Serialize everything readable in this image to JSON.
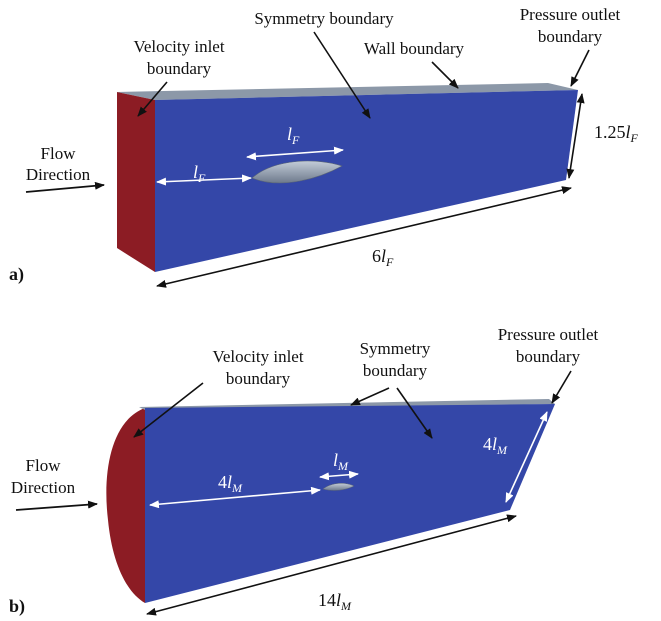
{
  "panel_a": {
    "tag": "a)",
    "labels": {
      "symmetry": "Symmetry boundary",
      "velocity_inlet_1": "Velocity inlet",
      "velocity_inlet_2": "boundary",
      "wall": "Wall boundary",
      "pressure_outlet_1": "Pressure outlet",
      "pressure_outlet_2": "boundary",
      "flow_1": "Flow",
      "flow_2": "Direction"
    },
    "dims": {
      "fin_length_sym": "l",
      "fin_length_sub": "F",
      "upstream_sym": "l",
      "upstream_sub": "F",
      "height_coef": "1.25",
      "height_sym": "l",
      "height_sub": "F",
      "length_coef": "6",
      "length_sym": "l",
      "length_sub": "F"
    }
  },
  "panel_b": {
    "tag": "b)",
    "labels": {
      "velocity_inlet_1": "Velocity inlet",
      "velocity_inlet_2": "boundary",
      "symmetry_1": "Symmetry",
      "symmetry_2": "boundary",
      "pressure_outlet_1": "Pressure outlet",
      "pressure_outlet_2": "boundary",
      "flow_1": "Flow",
      "flow_2": "Direction"
    },
    "dims": {
      "model_length_sym": "l",
      "model_length_sub": "M",
      "upstream_coef": "4",
      "upstream_sym": "l",
      "upstream_sub": "M",
      "height_coef": "4",
      "height_sym": "l",
      "height_sub": "M",
      "length_coef": "14",
      "length_sym": "l",
      "length_sub": "M"
    }
  },
  "colors": {
    "domain_face": "#3447a8",
    "inlet_face": "#8c1c24",
    "top_face": "#8c98a8",
    "body": "#9aa6b6"
  }
}
